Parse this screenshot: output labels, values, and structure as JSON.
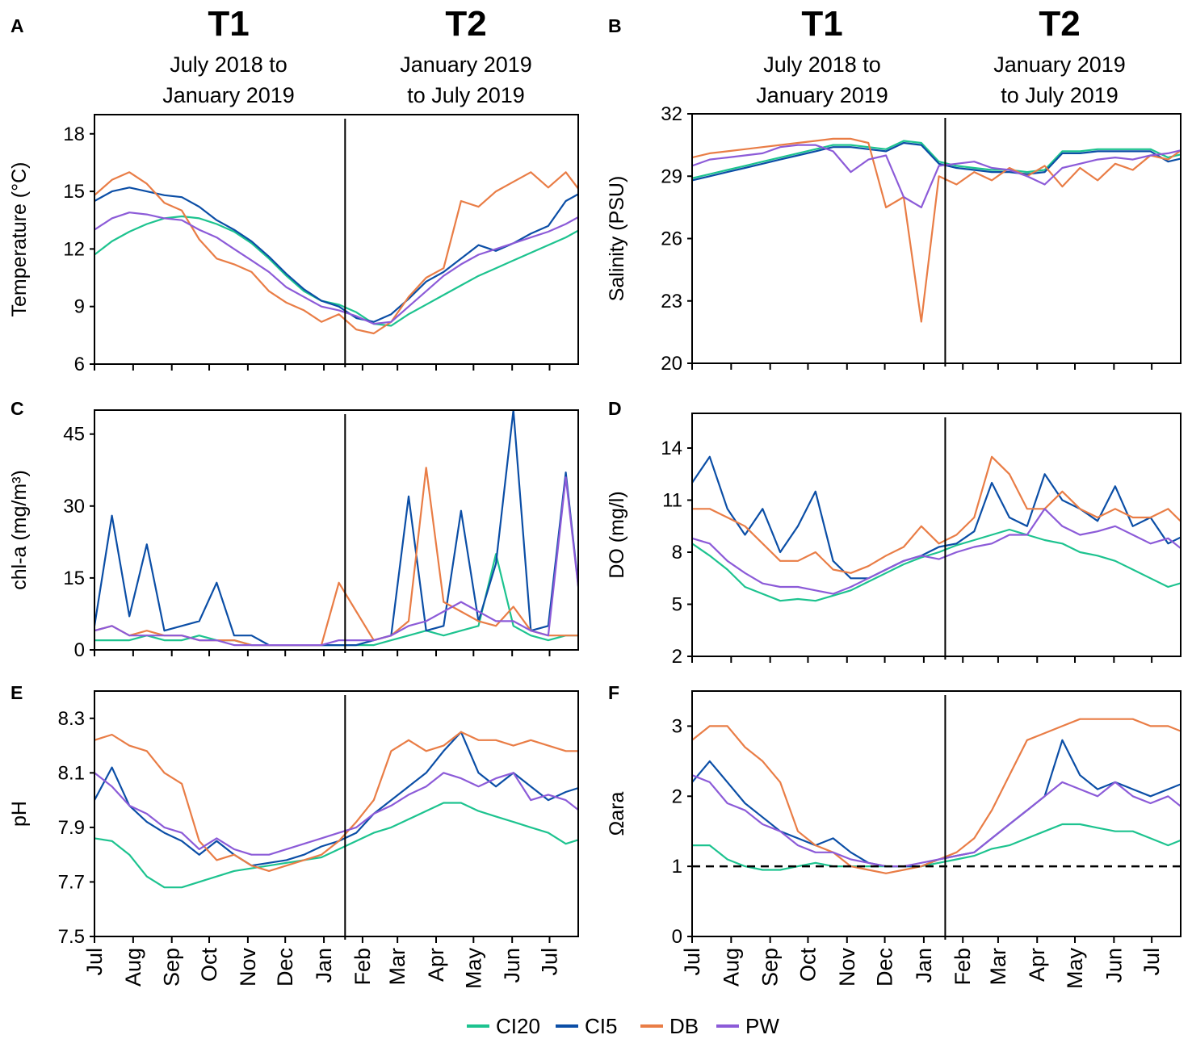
{
  "header": {
    "left": {
      "t1": "T1",
      "t1_line1": "July 2018 to",
      "t1_line2": "January 2019",
      "t2": "T2",
      "t2_line1": "January 2019",
      "t2_line2": "to July 2019"
    },
    "right": {
      "t1": "T1",
      "t1_line1": "July 2018 to",
      "t1_line2": "January 2019",
      "t2": "T2",
      "t2_line1": "January 2019",
      "t2_line2": "to July 2019"
    }
  },
  "legend": [
    {
      "name": "CI20",
      "color": "#1dc38f"
    },
    {
      "name": "CI5",
      "color": "#0b4ea6"
    },
    {
      "name": "DB",
      "color": "#e97d46"
    },
    {
      "name": "PW",
      "color": "#8c5bd8"
    }
  ],
  "month_labels": [
    "Jul",
    "Aug",
    "Sep",
    "Oct",
    "Nov",
    "Dec",
    "Jan",
    "Feb",
    "Mar",
    "Apr",
    "May",
    "Jun",
    "Jul"
  ],
  "chart_data": [
    {
      "panel": "A",
      "type": "line",
      "ylabel": "Temperature (°C)",
      "ylim": [
        6,
        19
      ],
      "yticks": [
        "6",
        "9",
        "12",
        "15",
        "18"
      ],
      "xlim_days": [
        0,
        388
      ],
      "divider_day": 201,
      "x_days": [
        0,
        14,
        28,
        42,
        56,
        70,
        84,
        98,
        112,
        126,
        140,
        154,
        168,
        182,
        196,
        210,
        224,
        238,
        252,
        266,
        280,
        294,
        308,
        322,
        336,
        350,
        364,
        378,
        392
      ],
      "series": [
        {
          "name": "CI20",
          "values": [
            11.7,
            12.4,
            12.9,
            13.3,
            13.6,
            13.7,
            13.6,
            13.3,
            12.9,
            12.3,
            11.5,
            10.6,
            9.8,
            9.3,
            9.1,
            8.7,
            8.1,
            8.0,
            8.6,
            9.1,
            9.6,
            10.1,
            10.6,
            11.0,
            11.4,
            11.8,
            12.2,
            12.6,
            13.1
          ]
        },
        {
          "name": "CI5",
          "values": [
            14.5,
            15.0,
            15.2,
            15.0,
            14.8,
            14.7,
            14.2,
            13.5,
            13.0,
            12.4,
            11.6,
            10.7,
            9.9,
            9.3,
            9.0,
            8.4,
            8.2,
            8.6,
            9.4,
            10.3,
            10.8,
            11.5,
            12.2,
            11.9,
            12.3,
            12.8,
            13.2,
            14.5,
            15.0
          ]
        },
        {
          "name": "DB",
          "values": [
            14.8,
            15.6,
            16.0,
            15.4,
            14.4,
            14.0,
            12.5,
            11.5,
            11.2,
            10.8,
            9.8,
            9.2,
            8.8,
            8.2,
            8.6,
            7.8,
            7.6,
            8.2,
            9.5,
            10.5,
            11.0,
            14.5,
            14.2,
            15.0,
            15.5,
            16.0,
            15.2,
            16.0,
            14.8
          ]
        },
        {
          "name": "PW",
          "values": [
            13.0,
            13.6,
            13.9,
            13.8,
            13.6,
            13.5,
            13.0,
            12.6,
            12.0,
            11.4,
            10.8,
            10.0,
            9.5,
            9.0,
            8.8,
            8.5,
            8.1,
            8.2,
            9.0,
            9.8,
            10.6,
            11.2,
            11.7,
            12.0,
            12.3,
            12.6,
            12.9,
            13.3,
            13.8
          ]
        }
      ]
    },
    {
      "panel": "B",
      "type": "line",
      "ylabel": "Salinity (PSU)",
      "ylim": [
        20,
        32
      ],
      "yticks": [
        "20",
        "23",
        "26",
        "29",
        "32"
      ],
      "xlim_days": [
        0,
        388
      ],
      "divider_day": 201,
      "x_days": [
        0,
        14,
        28,
        42,
        56,
        70,
        84,
        98,
        112,
        126,
        140,
        154,
        168,
        182,
        196,
        210,
        224,
        238,
        252,
        266,
        280,
        294,
        308,
        322,
        336,
        350,
        364,
        378,
        392
      ],
      "series": [
        {
          "name": "CI20",
          "values": [
            28.9,
            29.1,
            29.3,
            29.5,
            29.7,
            29.9,
            30.1,
            30.3,
            30.5,
            30.5,
            30.4,
            30.3,
            30.7,
            30.6,
            29.7,
            29.5,
            29.4,
            29.3,
            29.3,
            29.2,
            29.3,
            30.2,
            30.2,
            30.3,
            30.3,
            30.3,
            30.3,
            29.9,
            30.1
          ]
        },
        {
          "name": "CI5",
          "values": [
            28.8,
            29.0,
            29.2,
            29.4,
            29.6,
            29.8,
            30.0,
            30.2,
            30.4,
            30.4,
            30.3,
            30.2,
            30.6,
            30.5,
            29.6,
            29.4,
            29.3,
            29.2,
            29.2,
            29.1,
            29.2,
            30.1,
            30.1,
            30.2,
            30.2,
            30.2,
            30.2,
            29.7,
            29.9
          ]
        },
        {
          "name": "DB",
          "values": [
            29.9,
            30.1,
            30.2,
            30.3,
            30.4,
            30.5,
            30.6,
            30.7,
            30.8,
            30.8,
            30.6,
            27.5,
            28.0,
            22.0,
            29.0,
            28.6,
            29.2,
            28.8,
            29.4,
            29.0,
            29.5,
            28.5,
            29.4,
            28.8,
            29.6,
            29.3,
            30.0,
            29.8,
            30.4
          ]
        },
        {
          "name": "PW",
          "values": [
            29.5,
            29.8,
            29.9,
            30.0,
            30.1,
            30.4,
            30.5,
            30.5,
            30.2,
            29.2,
            29.8,
            30.0,
            28.0,
            27.5,
            29.5,
            29.6,
            29.7,
            29.4,
            29.3,
            29.0,
            28.6,
            29.4,
            29.6,
            29.8,
            29.9,
            29.8,
            30.0,
            30.1,
            30.3
          ]
        }
      ]
    },
    {
      "panel": "C",
      "type": "line",
      "ylabel": "chl-a (mg/m³)",
      "ylim": [
        0,
        50
      ],
      "yticks": [
        "0",
        "15",
        "30",
        "45"
      ],
      "xlim_days": [
        0,
        388
      ],
      "divider_day": 201,
      "x_days": [
        0,
        14,
        28,
        42,
        56,
        70,
        84,
        98,
        112,
        126,
        140,
        154,
        168,
        182,
        196,
        210,
        224,
        238,
        252,
        266,
        280,
        294,
        308,
        322,
        336,
        350,
        364,
        378,
        392
      ],
      "series": [
        {
          "name": "CI20",
          "values": [
            2,
            2,
            2,
            3,
            2,
            2,
            3,
            2,
            2,
            1,
            1,
            1,
            1,
            1,
            1,
            1,
            1,
            2,
            3,
            4,
            3,
            4,
            5,
            20,
            5,
            3,
            2,
            3,
            3
          ]
        },
        {
          "name": "CI5",
          "values": [
            5,
            28,
            7,
            22,
            4,
            5,
            6,
            14,
            3,
            3,
            1,
            1,
            1,
            1,
            1,
            1,
            2,
            3,
            32,
            4,
            5,
            29,
            6,
            18,
            50,
            4,
            5,
            37,
            4
          ]
        },
        {
          "name": "DB",
          "values": [
            4,
            5,
            3,
            4,
            3,
            3,
            2,
            2,
            2,
            1,
            1,
            1,
            1,
            1,
            14,
            8,
            2,
            3,
            6,
            38,
            10,
            8,
            6,
            5,
            9,
            4,
            3,
            3,
            3
          ]
        },
        {
          "name": "PW",
          "values": [
            4,
            5,
            3,
            3,
            3,
            3,
            2,
            2,
            1,
            1,
            1,
            1,
            1,
            1,
            2,
            2,
            2,
            3,
            5,
            6,
            8,
            10,
            8,
            6,
            6,
            4,
            3,
            36,
            4
          ]
        }
      ]
    },
    {
      "panel": "D",
      "type": "line",
      "ylabel": "DO (mg/l)",
      "ylim": [
        2,
        16
      ],
      "yticks": [
        "2",
        "5",
        "8",
        "11",
        "14"
      ],
      "xlim_days": [
        0,
        388
      ],
      "divider_day": 201,
      "x_days": [
        0,
        14,
        28,
        42,
        56,
        70,
        84,
        98,
        112,
        126,
        140,
        154,
        168,
        182,
        196,
        210,
        224,
        238,
        252,
        266,
        280,
        294,
        308,
        322,
        336,
        350,
        364,
        378,
        392
      ],
      "series": [
        {
          "name": "CI20",
          "values": [
            8.5,
            7.8,
            7.0,
            6.0,
            5.6,
            5.2,
            5.3,
            5.2,
            5.5,
            5.8,
            6.3,
            6.8,
            7.3,
            7.7,
            8.0,
            8.4,
            8.7,
            9.0,
            9.3,
            9.0,
            8.7,
            8.5,
            8.0,
            7.8,
            7.5,
            7.0,
            6.5,
            6.0,
            6.3
          ]
        },
        {
          "name": "CI5",
          "values": [
            12.0,
            13.5,
            10.5,
            9.0,
            10.5,
            8.0,
            9.5,
            11.5,
            7.5,
            6.5,
            6.5,
            7.0,
            7.5,
            7.8,
            8.3,
            8.5,
            9.2,
            12.0,
            10.0,
            9.5,
            12.5,
            11.0,
            10.5,
            9.8,
            11.8,
            9.5,
            10.0,
            8.5,
            9.0
          ]
        },
        {
          "name": "DB",
          "values": [
            10.5,
            10.5,
            10.0,
            9.5,
            8.5,
            7.5,
            7.5,
            8.0,
            7.0,
            6.8,
            7.2,
            7.8,
            8.3,
            9.5,
            8.5,
            9.0,
            10.0,
            13.5,
            12.5,
            10.5,
            10.5,
            11.5,
            10.5,
            10.0,
            10.5,
            10.0,
            10.0,
            10.5,
            9.5
          ]
        },
        {
          "name": "PW",
          "values": [
            8.8,
            8.5,
            7.5,
            6.8,
            6.2,
            6.0,
            6.0,
            5.8,
            5.6,
            6.0,
            6.5,
            7.0,
            7.5,
            7.8,
            7.6,
            8.0,
            8.3,
            8.5,
            9.0,
            9.0,
            10.5,
            9.5,
            9.0,
            9.2,
            9.5,
            9.0,
            8.5,
            8.8,
            8.0
          ]
        }
      ]
    },
    {
      "panel": "E",
      "type": "line",
      "ylabel": "pH",
      "ylim": [
        7.5,
        8.4
      ],
      "yticks": [
        "7.5",
        "7.7",
        "7.9",
        "8.1",
        "8.3"
      ],
      "xlim_days": [
        0,
        388
      ],
      "divider_day": 201,
      "x_days": [
        0,
        14,
        28,
        42,
        56,
        70,
        84,
        98,
        112,
        126,
        140,
        154,
        168,
        182,
        196,
        210,
        224,
        238,
        252,
        266,
        280,
        294,
        308,
        322,
        336,
        350,
        364,
        378,
        392
      ],
      "series": [
        {
          "name": "CI20",
          "values": [
            7.86,
            7.85,
            7.8,
            7.72,
            7.68,
            7.68,
            7.7,
            7.72,
            7.74,
            7.75,
            7.76,
            7.77,
            7.78,
            7.79,
            7.82,
            7.85,
            7.88,
            7.9,
            7.93,
            7.96,
            7.99,
            7.99,
            7.96,
            7.94,
            7.92,
            7.9,
            7.88,
            7.84,
            7.86
          ]
        },
        {
          "name": "CI5",
          "values": [
            8.0,
            8.12,
            7.98,
            7.92,
            7.88,
            7.85,
            7.8,
            7.85,
            7.8,
            7.76,
            7.77,
            7.78,
            7.8,
            7.83,
            7.85,
            7.88,
            7.95,
            8.0,
            8.05,
            8.1,
            8.18,
            8.25,
            8.1,
            8.05,
            8.1,
            8.05,
            8.0,
            8.03,
            8.05
          ]
        },
        {
          "name": "DB",
          "values": [
            8.22,
            8.24,
            8.2,
            8.18,
            8.1,
            8.06,
            7.85,
            7.78,
            7.8,
            7.76,
            7.74,
            7.76,
            7.78,
            7.8,
            7.85,
            7.92,
            8.0,
            8.18,
            8.22,
            8.18,
            8.2,
            8.25,
            8.22,
            8.22,
            8.2,
            8.22,
            8.2,
            8.18,
            8.18
          ]
        },
        {
          "name": "PW",
          "values": [
            8.1,
            8.05,
            7.98,
            7.95,
            7.9,
            7.88,
            7.82,
            7.86,
            7.82,
            7.8,
            7.8,
            7.82,
            7.84,
            7.86,
            7.88,
            7.9,
            7.95,
            7.98,
            8.02,
            8.05,
            8.1,
            8.08,
            8.05,
            8.08,
            8.1,
            8.0,
            8.02,
            8.0,
            7.95
          ]
        }
      ]
    },
    {
      "panel": "F",
      "type": "line",
      "ylabel": "Ωara",
      "ylim": [
        0,
        3.5
      ],
      "yticks": [
        "0",
        "1",
        "2",
        "3"
      ],
      "xlim_days": [
        0,
        388
      ],
      "divider_day": 201,
      "reference_line": 1,
      "x_days": [
        0,
        14,
        28,
        42,
        56,
        70,
        84,
        98,
        112,
        126,
        140,
        154,
        168,
        182,
        196,
        210,
        224,
        238,
        252,
        266,
        280,
        294,
        308,
        322,
        336,
        350,
        364,
        378,
        392
      ],
      "series": [
        {
          "name": "CI20",
          "values": [
            1.3,
            1.3,
            1.1,
            1.0,
            0.95,
            0.95,
            1.0,
            1.05,
            1.0,
            1.0,
            1.0,
            1.0,
            1.0,
            1.0,
            1.05,
            1.1,
            1.15,
            1.25,
            1.3,
            1.4,
            1.5,
            1.6,
            1.6,
            1.55,
            1.5,
            1.5,
            1.4,
            1.3,
            1.4
          ]
        },
        {
          "name": "CI5",
          "values": [
            2.2,
            2.5,
            2.2,
            1.9,
            1.7,
            1.5,
            1.4,
            1.3,
            1.4,
            1.2,
            1.05,
            1.0,
            1.0,
            1.0,
            1.1,
            1.15,
            1.2,
            1.4,
            1.6,
            1.8,
            2.0,
            2.8,
            2.3,
            2.1,
            2.2,
            2.1,
            2.0,
            2.1,
            2.2
          ]
        },
        {
          "name": "DB",
          "values": [
            2.8,
            3.0,
            3.0,
            2.7,
            2.5,
            2.2,
            1.5,
            1.3,
            1.2,
            1.0,
            0.95,
            0.9,
            0.95,
            1.0,
            1.1,
            1.2,
            1.4,
            1.8,
            2.3,
            2.8,
            2.9,
            3.0,
            3.1,
            3.1,
            3.1,
            3.1,
            3.0,
            3.0,
            2.9
          ]
        },
        {
          "name": "PW",
          "values": [
            2.3,
            2.2,
            1.9,
            1.8,
            1.6,
            1.5,
            1.3,
            1.2,
            1.2,
            1.1,
            1.05,
            1.0,
            1.0,
            1.05,
            1.1,
            1.15,
            1.2,
            1.4,
            1.6,
            1.8,
            2.0,
            2.2,
            2.1,
            2.0,
            2.2,
            2.0,
            1.9,
            2.0,
            1.8
          ]
        }
      ]
    }
  ]
}
